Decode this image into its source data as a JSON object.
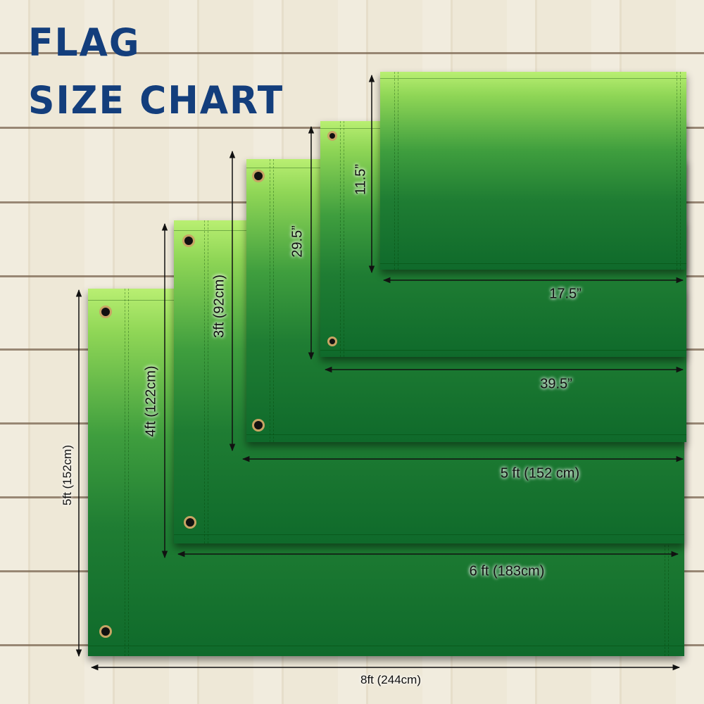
{
  "title": {
    "line1": "FLAG",
    "line2": "SIZE CHART"
  },
  "sizes": [
    {
      "width": "8ft (244cm)",
      "height": "5ft (152cm)"
    },
    {
      "width": "6 ft (183cm)",
      "height": "4ft (122cm)"
    },
    {
      "width": "5 ft (152 cm)",
      "height": "3ft (92cm)"
    },
    {
      "width": "39.5”",
      "height": "29.5”"
    },
    {
      "width": "17.5”",
      "height": "11.5”"
    }
  ],
  "colors": {
    "title": "#133e7c",
    "flag_light": "#b9ef72",
    "flag_dark": "#0f6a2b",
    "background": "#ece5d3"
  }
}
